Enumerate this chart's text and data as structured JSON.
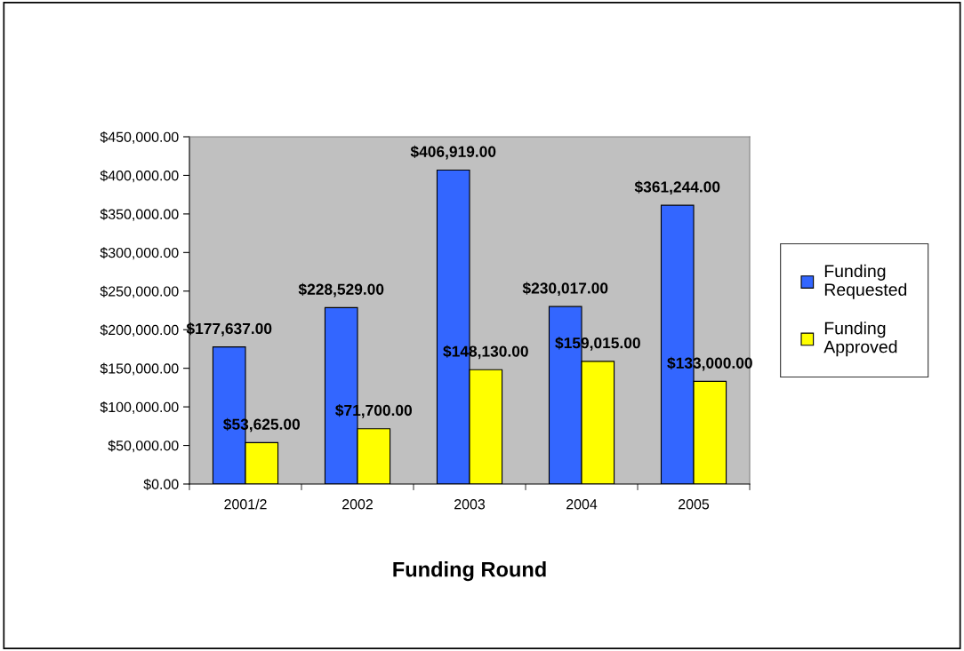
{
  "chart_data": {
    "type": "bar",
    "xlabel": "Funding Round",
    "categories": [
      "2001/2",
      "2002",
      "2003",
      "2004",
      "2005"
    ],
    "series": [
      {
        "name": "Funding Requested",
        "color": "#3366ff",
        "values": [
          177637,
          228529,
          406919,
          230017,
          361244
        ],
        "value_labels": [
          "$177,637.00",
          "$228,529.00",
          "$406,919.00",
          "$230,017.00",
          "$361,244.00"
        ]
      },
      {
        "name": "Funding Approved",
        "color": "#ffff00",
        "values": [
          53625,
          71700,
          148130,
          159015,
          133000
        ],
        "value_labels": [
          "$53,625.00",
          "$71,700.00",
          "$148,130.00",
          "$159,015.00",
          "$133,000.00"
        ]
      }
    ],
    "ylim": [
      0,
      450000
    ],
    "yticks": [
      {
        "value": 0,
        "label": "$0.00"
      },
      {
        "value": 50000,
        "label": "$50,000.00"
      },
      {
        "value": 100000,
        "label": "$100,000.00"
      },
      {
        "value": 150000,
        "label": "$150,000.00"
      },
      {
        "value": 200000,
        "label": "$200,000.00"
      },
      {
        "value": 250000,
        "label": "$250,000.00"
      },
      {
        "value": 300000,
        "label": "$300,000.00"
      },
      {
        "value": 350000,
        "label": "$350,000.00"
      },
      {
        "value": 400000,
        "label": "$400,000.00"
      },
      {
        "value": 450000,
        "label": "$450,000.00"
      }
    ],
    "grid": false,
    "legend": "right"
  }
}
